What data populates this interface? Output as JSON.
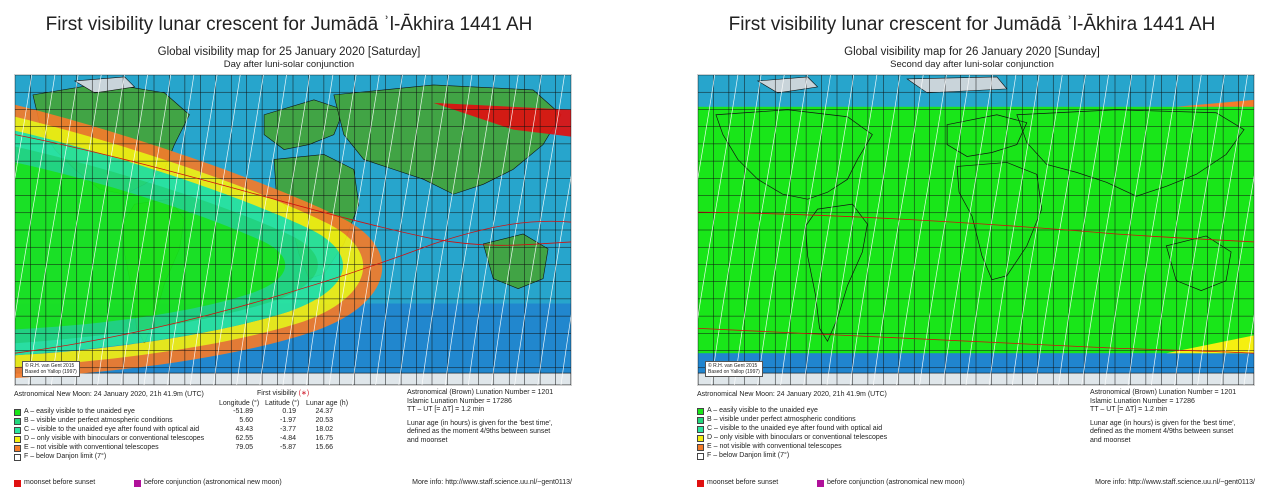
{
  "colors": {
    "zone_a": "#19e619",
    "zone_b": "#22d77c",
    "zone_c": "#2ae59f",
    "zone_d": "#f5ef10",
    "zone_e": "#f47b2a",
    "zone_f": "#ffffff",
    "moonset_before_sunset": "#e01010",
    "before_conjunction": "#b0109a",
    "ocean": "#26a3c9",
    "land": "#3fa143"
  },
  "panels": [
    {
      "title": "First visibility lunar crescent for Jumādā ʾl-Ākhira 1441 AH",
      "map_title": "Global visibility map for 25 January 2020 [Saturday]",
      "map_subtitle": "Day after luni-solar conjunction",
      "copyright_line1": "© R.H. van Gent 2015",
      "copyright_line2": "Based on Yallop (1997)",
      "new_moon": "Astronomical New Moon: 24 January 2020, 21h 41.9m (UTC)",
      "first_visibility_label": "First visibility",
      "first_visibility_star": "(∗)",
      "col_longitude": "Longitude (°)",
      "col_latitude": "Latitude (°)",
      "col_age": "Lunar age (h)",
      "legend": [
        {
          "label": "A – easily visible to the unaided eye",
          "longitude": "-51.89",
          "latitude": "0.19",
          "age": "24.37"
        },
        {
          "label": "B – visible under perfect atmospheric conditions",
          "longitude": "5.60",
          "latitude": "-1.97",
          "age": "20.53"
        },
        {
          "label": "C – visible to the unaided eye after found with optical aid",
          "longitude": "43.43",
          "latitude": "-3.77",
          "age": "18.02"
        },
        {
          "label": "D – only visible with binoculars or conventional telescopes",
          "longitude": "62.55",
          "latitude": "-4.84",
          "age": "16.75"
        },
        {
          "label": "E – not visible with conventional telescopes",
          "longitude": "79.05",
          "latitude": "-5.87",
          "age": "15.66"
        },
        {
          "label": "F – below Danjon limit (7°)",
          "longitude": "",
          "latitude": "",
          "age": ""
        }
      ],
      "moonset_label": "moonset before sunset",
      "conjunction_label": "before conjunction (astronomical new moon)",
      "lunation_brown": "Astronomical (Brown) Lunation Number = 1201",
      "lunation_islamic": "Islamic Lunation Number = 17286",
      "delta_t": "TT – UT [= ΔT] = 1.2 min",
      "lunar_age_note_1": "Lunar age (in hours) is given for the 'best time',",
      "lunar_age_note_2": "defined as the moment 4/9ths between sunset",
      "lunar_age_note_3": "and moonset",
      "more_info": "More info: http://www.staff.science.uu.nl/~gent0113/"
    },
    {
      "title": "First visibility lunar crescent for Jumādā ʾl-Ākhira 1441 AH",
      "map_title": "Global visibility map for 26 January 2020 [Sunday]",
      "map_subtitle": "Second day after luni-solar conjunction",
      "copyright_line1": "© R.H. van Gent 2015",
      "copyright_line2": "Based on Yallop (1997)",
      "new_moon": "Astronomical New Moon: 24 January 2020, 21h 41.9m (UTC)",
      "legend": [
        {
          "label": "A – easily visible to the unaided eye"
        },
        {
          "label": "B – visible under perfect atmospheric conditions"
        },
        {
          "label": "C – visible to the unaided eye after found with optical aid"
        },
        {
          "label": "D – only visible with binoculars or conventional telescopes"
        },
        {
          "label": "E – not visible with conventional telescopes"
        },
        {
          "label": "F – below Danjon limit (7°)"
        }
      ],
      "moonset_label": "moonset before sunset",
      "conjunction_label": "before conjunction (astronomical new moon)",
      "lunation_brown": "Astronomical (Brown) Lunation Number = 1201",
      "lunation_islamic": "Islamic Lunation Number = 17286",
      "delta_t": "TT – UT [= ΔT] = 1.2 min",
      "lunar_age_note_1": "Lunar age (in hours) is given for the 'best time',",
      "lunar_age_note_2": "defined as the moment 4/9ths between sunset",
      "lunar_age_note_3": "and moonset",
      "more_info": "More info: http://www.staff.science.uu.nl/~gent0113/"
    }
  ]
}
